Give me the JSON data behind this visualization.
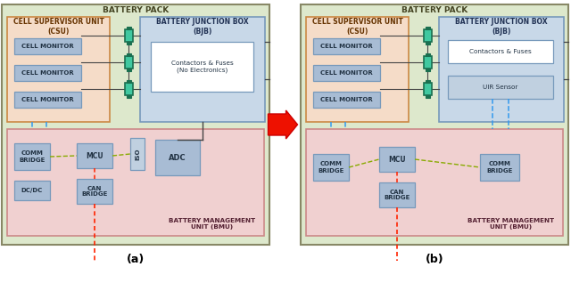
{
  "fig_width": 6.4,
  "fig_height": 3.18,
  "dpi": 100,
  "bg_color": "#ffffff",
  "label_a": "(a)",
  "label_b": "(b)",
  "battery_pack_label": "BATTERY PACK",
  "csu_label": "CELL SUPERVISOR UNIT\n(CSU)",
  "bjb_label_a": "BATTERY JUNCTION BOX\n(BJB)",
  "bjb_label_b": "BATTERY JUNCTION BOX\n(BJB)",
  "bmu_label_a": "BATTERY MANAGEMENT\nUNIT (BMU)",
  "bmu_label_b": "BATTERY MANAGEMENT\nUNIT (BMU)",
  "cell_monitor_label": "CELL MONITOR",
  "contactors_fuses_a": "Contactors & Fuses\n(No Electronics)",
  "contactors_fuses_b": "Contactors & Fuses",
  "uir_sensor_label": "UIR Sensor",
  "comm_bridge_label": "COMM\nBRIDGE",
  "mcu_label": "MCU",
  "iso_label": "ISO",
  "adc_label": "ADC",
  "can_bridge_label": "CAN\nBRIDGE",
  "dc_dc_label": "DC/DC",
  "color_outer": "#dde8cc",
  "color_csu": "#f5dcc8",
  "color_bjb": "#c8d8e8",
  "color_bmu": "#f0d0d0",
  "color_block": "#a8bcd4",
  "color_block_light": "#c0d0e0",
  "color_white": "#ffffff",
  "color_cell_body": "#40c8a0",
  "color_cell_dark": "#1a7050",
  "color_edge_outer": "#888866",
  "color_edge_csu": "#cc8844",
  "color_edge_bjb": "#7799bb",
  "color_edge_bmu": "#cc8888",
  "color_edge_block": "#7799bb",
  "color_text_bp": "#444422",
  "color_text_csu": "#663300",
  "color_text_bjb": "#223355",
  "color_text_bmu": "#552233",
  "color_text_block": "#223344",
  "color_blue_dash": "#3399ee",
  "color_green_dash": "#88aa00",
  "color_red_dash": "#ff2200",
  "color_solid": "#444444",
  "color_arrow_fill": "#ee1100",
  "color_arrow_edge": "#cc0000"
}
